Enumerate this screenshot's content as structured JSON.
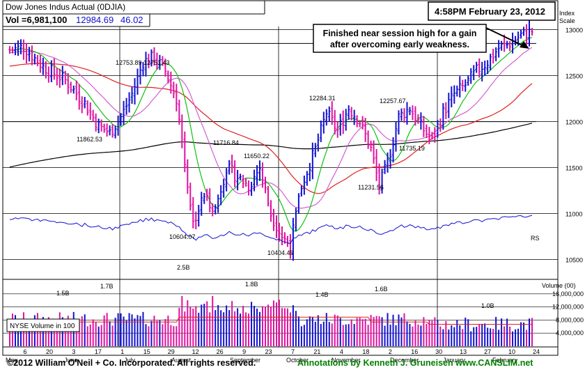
{
  "header": {
    "title": "Dow Jones Indus Actual  (0DJIA)",
    "vol_label": "Vol =6,981,100",
    "price": "12984.69",
    "change": "46.02",
    "timestamp": "4:58PM February 23, 2012"
  },
  "annotation": "Finished near session high for a gain after overcoming early weakness.",
  "annotation_lines": [
    "Finished near session high for a gain",
    "after overcoming early weakness."
  ],
  "footer": {
    "copyright": "©2012 William O'Neil + Co. Incorporated. All rights reserved.",
    "credits": "Annotations by Kenneth J. Gruneisen www.CANSLIM.net"
  },
  "colors": {
    "up": "#1010d0",
    "down": "#e010a0",
    "ma50": "#e02020",
    "ma200": "#000000",
    "ma10": "#10c010",
    "ma20": "#d060d0",
    "rs": "#1010d0",
    "footer_credit": "#008000"
  },
  "chart_data": {
    "type": "candlestick",
    "price_axis": {
      "title": "Index Scale",
      "ticks": [
        10500,
        11000,
        11500,
        12000,
        12500,
        13000
      ],
      "tick_labels": [
        "10500",
        "11000",
        "11500",
        "12000",
        "12500",
        "13000"
      ],
      "range": [
        10300,
        13300
      ]
    },
    "volume_axis": {
      "title": "Volume (00)",
      "ticks": [
        4000000,
        8000000,
        12000000,
        16000000
      ],
      "tick_labels": [
        "4,000,000",
        "8,000,000",
        "12,000,000",
        "16,000,000"
      ],
      "range": [
        0,
        20000000
      ]
    },
    "x_tick_labels": [
      "6",
      "20",
      "3",
      "17",
      "1",
      "15",
      "29",
      "12",
      "26",
      "9",
      "23",
      "7",
      "21",
      "4",
      "18",
      "2",
      "16",
      "30",
      "13",
      "27",
      "10",
      "24"
    ],
    "month_labels": [
      "May",
      "June",
      "July",
      "August",
      "September",
      "October",
      "November",
      "December",
      "January",
      "February"
    ],
    "volume_legend": "NYSE Volume in 100",
    "rs_label": "RS",
    "price_annotations": [
      {
        "label": "12753.89",
        "value": 12753.89
      },
      {
        "label": "12751.43",
        "value": 12751.43
      },
      {
        "label": "11862.53",
        "value": 11862.53
      },
      {
        "label": "11716.84",
        "value": 11716.84
      },
      {
        "label": "11650.22",
        "value": 11650.22
      },
      {
        "label": "10604.07",
        "value": 10604.07
      },
      {
        "label": "10404.49",
        "value": 10404.49
      },
      {
        "label": "12284.31",
        "value": 12284.31
      },
      {
        "label": "12257.67",
        "value": 12257.67
      },
      {
        "label": "11735.19",
        "value": 11735.19
      },
      {
        "label": "11231.56",
        "value": 11231.56
      }
    ],
    "volume_annotations": [
      "1.5B",
      "1.7B",
      "2.5B",
      "1.8B",
      "1.4B",
      "1.6B",
      "1.0B"
    ],
    "key_closes": [
      {
        "period": "early May",
        "close": 12810
      },
      {
        "period": "mid June",
        "close": 11900
      },
      {
        "period": "early July",
        "close": 12700
      },
      {
        "period": "early August",
        "close": 10810
      },
      {
        "period": "early October",
        "close": 10650
      },
      {
        "period": "late October",
        "close": 12200
      },
      {
        "period": "late November",
        "close": 11300
      },
      {
        "period": "early December",
        "close": 12150
      },
      {
        "period": "mid December",
        "close": 11800
      },
      {
        "period": "late January",
        "close": 12650
      },
      {
        "period": "Feb 23",
        "close": 12984.69
      }
    ],
    "reference_lines": [
      12850,
      12000
    ]
  }
}
